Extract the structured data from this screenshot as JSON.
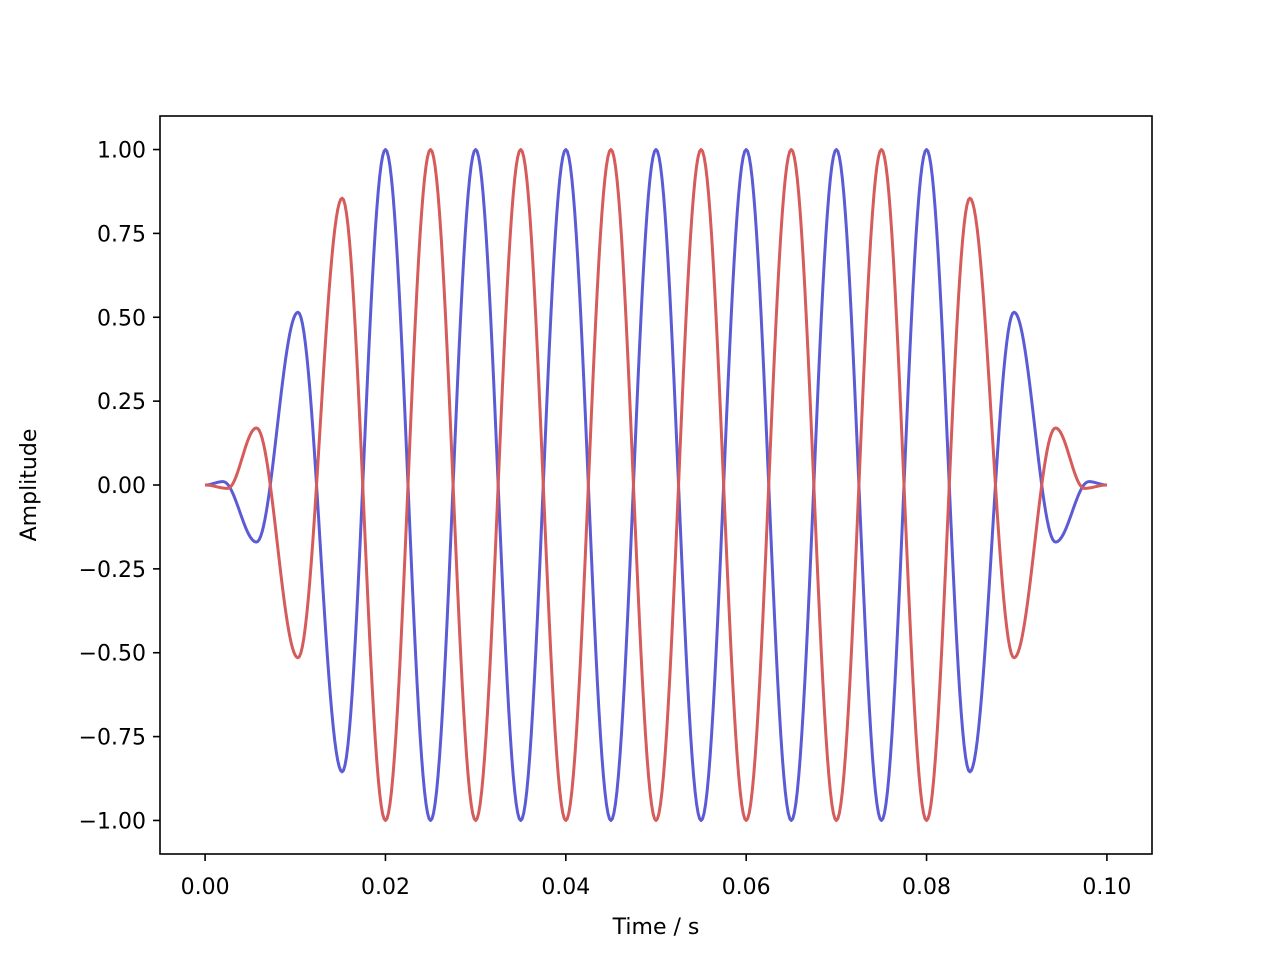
{
  "chart_data": {
    "type": "line",
    "title": "",
    "xlabel": "Time / s",
    "ylabel": "Amplitude",
    "xlim": [
      -0.005,
      0.105
    ],
    "ylim": [
      -1.1,
      1.1
    ],
    "x_ticks": [
      0.0,
      0.02,
      0.04,
      0.06,
      0.08,
      0.1
    ],
    "x_tick_labels": [
      "0.00",
      "0.02",
      "0.04",
      "0.06",
      "0.08",
      "0.10"
    ],
    "y_ticks": [
      1.0,
      0.75,
      0.5,
      0.25,
      0.0,
      -0.25,
      -0.5,
      -0.75,
      -1.0
    ],
    "y_tick_labels": [
      "1.00",
      "0.75",
      "0.50",
      "0.25",
      "0.00",
      "−0.25",
      "−0.50",
      "−0.75",
      "−1.00"
    ],
    "grid": false,
    "legend": "none",
    "series": [
      {
        "color": "#5b5bd6",
        "x": [
          0.0,
          0.002,
          0.0057,
          0.0103,
          0.0152,
          0.02,
          0.025,
          0.03,
          0.035,
          0.04,
          0.045,
          0.05,
          0.055,
          0.06,
          0.065,
          0.07,
          0.075,
          0.08,
          0.0848,
          0.0897,
          0.0943,
          0.098,
          0.1
        ],
        "y": [
          0.0,
          0.01,
          -0.17,
          0.515,
          -0.855,
          1.0,
          -1.0,
          1.0,
          -1.0,
          1.0,
          -1.0,
          1.0,
          -1.0,
          1.0,
          -1.0,
          1.0,
          -1.0,
          1.0,
          -0.855,
          0.515,
          -0.17,
          0.01,
          0.0
        ]
      },
      {
        "color": "#d65b5b",
        "x": [
          0.0,
          0.0025,
          0.0057,
          0.0103,
          0.0152,
          0.02,
          0.025,
          0.03,
          0.035,
          0.04,
          0.045,
          0.05,
          0.055,
          0.06,
          0.065,
          0.07,
          0.075,
          0.08,
          0.0848,
          0.0897,
          0.0943,
          0.0975,
          0.1
        ],
        "y": [
          0.0,
          -0.01,
          0.17,
          -0.515,
          0.855,
          -1.0,
          1.0,
          -1.0,
          1.0,
          -1.0,
          1.0,
          -1.0,
          1.0,
          -1.0,
          1.0,
          -1.0,
          1.0,
          -1.0,
          0.855,
          -0.515,
          0.17,
          -0.01,
          0.0
        ]
      }
    ]
  }
}
